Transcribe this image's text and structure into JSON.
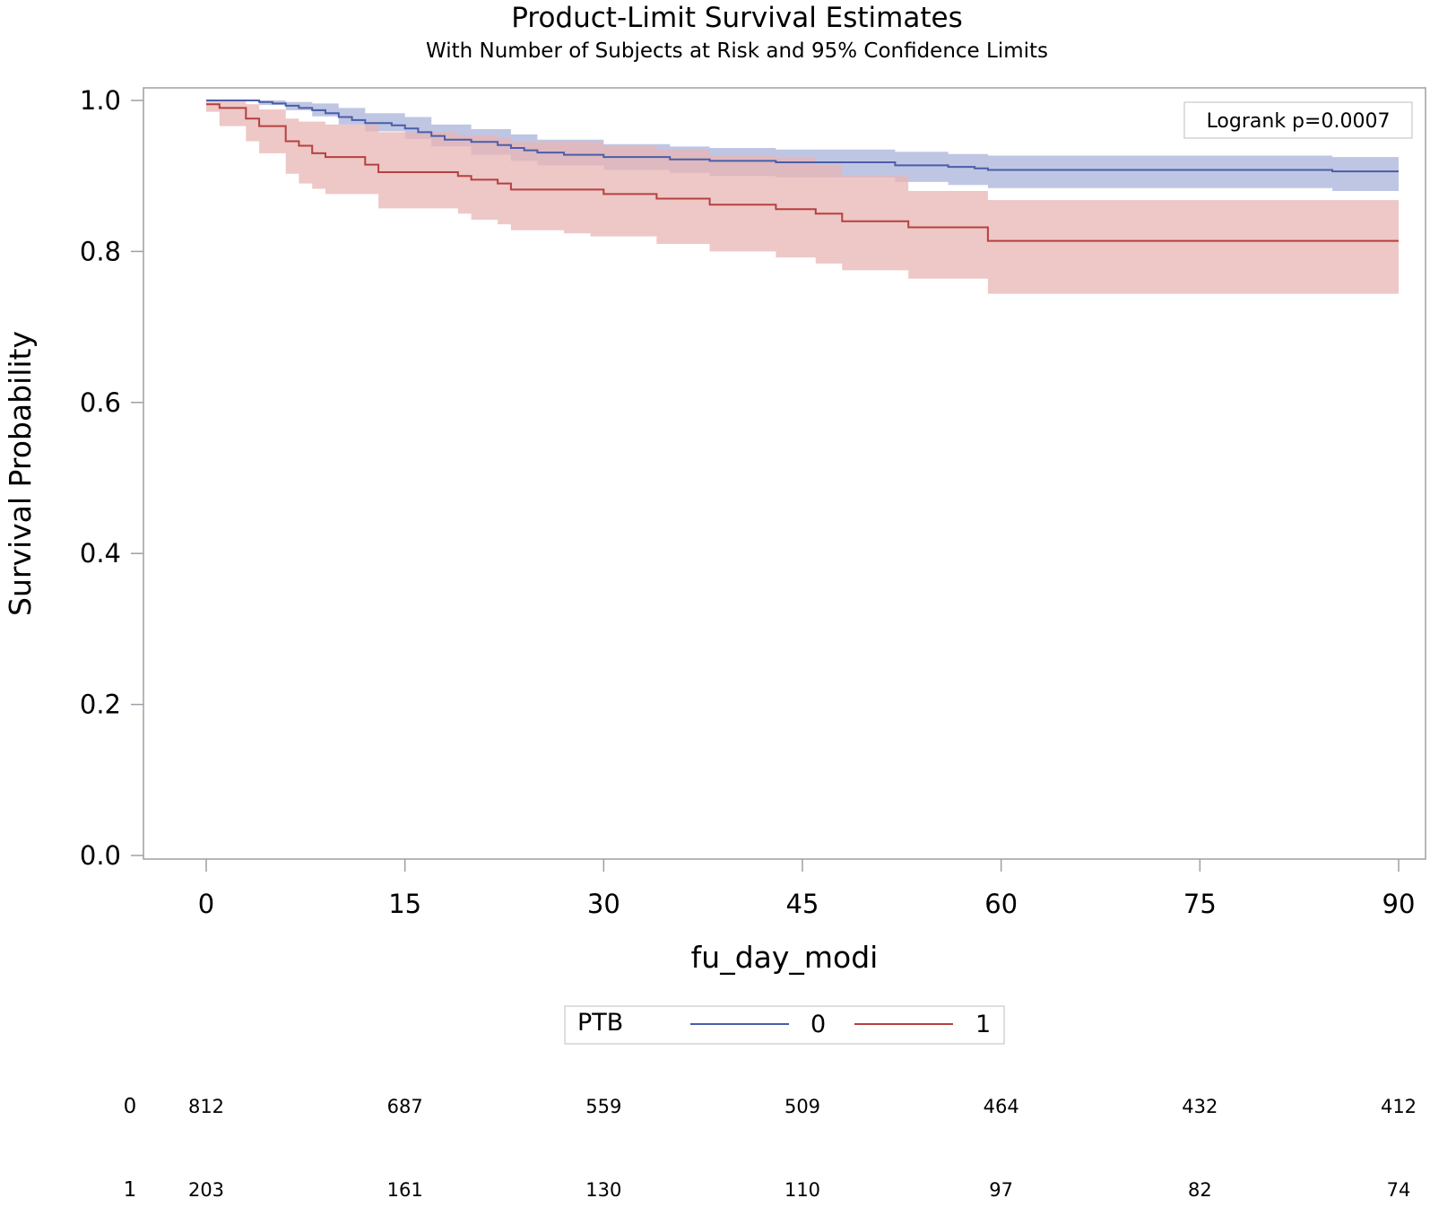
{
  "chart_data": {
    "type": "line",
    "title": "Product-Limit Survival Estimates",
    "subtitle": "With Number of Subjects at Risk and 95% Confidence Limits",
    "xlabel": "fu_day_modi",
    "ylabel": "Survival Probability",
    "xlim": [
      -5,
      92
    ],
    "ylim": [
      0,
      1.0
    ],
    "x_ticks": [
      0,
      15,
      30,
      45,
      60,
      75,
      90
    ],
    "x_tick_labels": [
      "0",
      "15",
      "30",
      "45",
      "60",
      "75",
      "90"
    ],
    "y_ticks": [
      0,
      0.2,
      0.4,
      0.6,
      0.8,
      1.0
    ],
    "y_tick_labels": [
      "0.0",
      "0.2",
      "0.4",
      "0.6",
      "0.8",
      "1.0"
    ],
    "annotation": "Logrank p=0.0007",
    "legend": {
      "title": "PTB",
      "placement": "bottom-center"
    },
    "series": [
      {
        "name": "0",
        "color": "#4a5ea8",
        "band_color": "#a9b3d9",
        "steps": [
          [
            0,
            1.0
          ],
          [
            4,
            0.998
          ],
          [
            5,
            0.996
          ],
          [
            6,
            0.993
          ],
          [
            7,
            0.99
          ],
          [
            8,
            0.987
          ],
          [
            9,
            0.983
          ],
          [
            10,
            0.978
          ],
          [
            11,
            0.974
          ],
          [
            12,
            0.97
          ],
          [
            14,
            0.967
          ],
          [
            15,
            0.963
          ],
          [
            16,
            0.958
          ],
          [
            17,
            0.953
          ],
          [
            18,
            0.948
          ],
          [
            20,
            0.945
          ],
          [
            22,
            0.941
          ],
          [
            23,
            0.937
          ],
          [
            24,
            0.934
          ],
          [
            25,
            0.931
          ],
          [
            27,
            0.928
          ],
          [
            30,
            0.925
          ],
          [
            35,
            0.922
          ],
          [
            38,
            0.92
          ],
          [
            43,
            0.918
          ],
          [
            52,
            0.914
          ],
          [
            56,
            0.912
          ],
          [
            58,
            0.91
          ],
          [
            59,
            0.908
          ],
          [
            85,
            0.906
          ],
          [
            90,
            0.906
          ]
        ],
        "lower": [
          [
            0,
            1.0
          ],
          [
            4,
            0.994
          ],
          [
            6,
            0.987
          ],
          [
            8,
            0.979
          ],
          [
            10,
            0.968
          ],
          [
            12,
            0.959
          ],
          [
            15,
            0.949
          ],
          [
            17,
            0.939
          ],
          [
            20,
            0.928
          ],
          [
            23,
            0.92
          ],
          [
            25,
            0.914
          ],
          [
            30,
            0.908
          ],
          [
            35,
            0.904
          ],
          [
            38,
            0.9
          ],
          [
            43,
            0.898
          ],
          [
            52,
            0.892
          ],
          [
            56,
            0.888
          ],
          [
            59,
            0.884
          ],
          [
            85,
            0.88
          ],
          [
            90,
            0.88
          ]
        ],
        "upper": [
          [
            0,
            1.0
          ],
          [
            4,
            1.0
          ],
          [
            6,
            0.998
          ],
          [
            8,
            0.996
          ],
          [
            10,
            0.99
          ],
          [
            12,
            0.983
          ],
          [
            15,
            0.978
          ],
          [
            17,
            0.968
          ],
          [
            20,
            0.962
          ],
          [
            23,
            0.955
          ],
          [
            25,
            0.948
          ],
          [
            30,
            0.942
          ],
          [
            35,
            0.939
          ],
          [
            38,
            0.937
          ],
          [
            43,
            0.935
          ],
          [
            52,
            0.932
          ],
          [
            56,
            0.929
          ],
          [
            59,
            0.927
          ],
          [
            85,
            0.925
          ],
          [
            90,
            0.925
          ]
        ]
      },
      {
        "name": "1",
        "color": "#b5413e",
        "band_color": "#e8b4b4",
        "steps": [
          [
            0,
            0.995
          ],
          [
            1,
            0.99
          ],
          [
            3,
            0.976
          ],
          [
            4,
            0.966
          ],
          [
            6,
            0.946
          ],
          [
            7,
            0.94
          ],
          [
            8,
            0.93
          ],
          [
            9,
            0.925
          ],
          [
            12,
            0.915
          ],
          [
            13,
            0.905
          ],
          [
            19,
            0.9
          ],
          [
            20,
            0.895
          ],
          [
            22,
            0.89
          ],
          [
            23,
            0.882
          ],
          [
            30,
            0.876
          ],
          [
            34,
            0.87
          ],
          [
            38,
            0.862
          ],
          [
            43,
            0.856
          ],
          [
            46,
            0.85
          ],
          [
            48,
            0.84
          ],
          [
            53,
            0.832
          ],
          [
            59,
            0.814
          ],
          [
            90,
            0.814
          ]
        ],
        "lower": [
          [
            0,
            0.985
          ],
          [
            1,
            0.966
          ],
          [
            3,
            0.946
          ],
          [
            4,
            0.93
          ],
          [
            6,
            0.903
          ],
          [
            7,
            0.89
          ],
          [
            8,
            0.883
          ],
          [
            9,
            0.876
          ],
          [
            13,
            0.857
          ],
          [
            19,
            0.85
          ],
          [
            20,
            0.842
          ],
          [
            22,
            0.836
          ],
          [
            23,
            0.828
          ],
          [
            27,
            0.824
          ],
          [
            29,
            0.82
          ],
          [
            34,
            0.81
          ],
          [
            38,
            0.8
          ],
          [
            43,
            0.792
          ],
          [
            46,
            0.784
          ],
          [
            48,
            0.775
          ],
          [
            53,
            0.764
          ],
          [
            59,
            0.744
          ],
          [
            90,
            0.744
          ]
        ],
        "upper": [
          [
            0,
            1.0
          ],
          [
            3,
            0.995
          ],
          [
            4,
            0.988
          ],
          [
            6,
            0.976
          ],
          [
            7,
            0.972
          ],
          [
            9,
            0.968
          ],
          [
            13,
            0.958
          ],
          [
            19,
            0.954
          ],
          [
            22,
            0.95
          ],
          [
            23,
            0.945
          ],
          [
            30,
            0.94
          ],
          [
            34,
            0.935
          ],
          [
            38,
            0.927
          ],
          [
            43,
            0.924
          ],
          [
            46,
            0.915
          ],
          [
            48,
            0.9
          ],
          [
            53,
            0.88
          ],
          [
            59,
            0.868
          ],
          [
            90,
            0.868
          ]
        ]
      }
    ],
    "risk_table": {
      "times": [
        0,
        15,
        30,
        45,
        60,
        75,
        90
      ],
      "rows": [
        {
          "group": "0",
          "counts": [
            "812",
            "687",
            "559",
            "509",
            "464",
            "432",
            "412"
          ]
        },
        {
          "group": "1",
          "counts": [
            "203",
            "161",
            "130",
            "110",
            "97",
            "82",
            "74"
          ]
        }
      ]
    }
  }
}
